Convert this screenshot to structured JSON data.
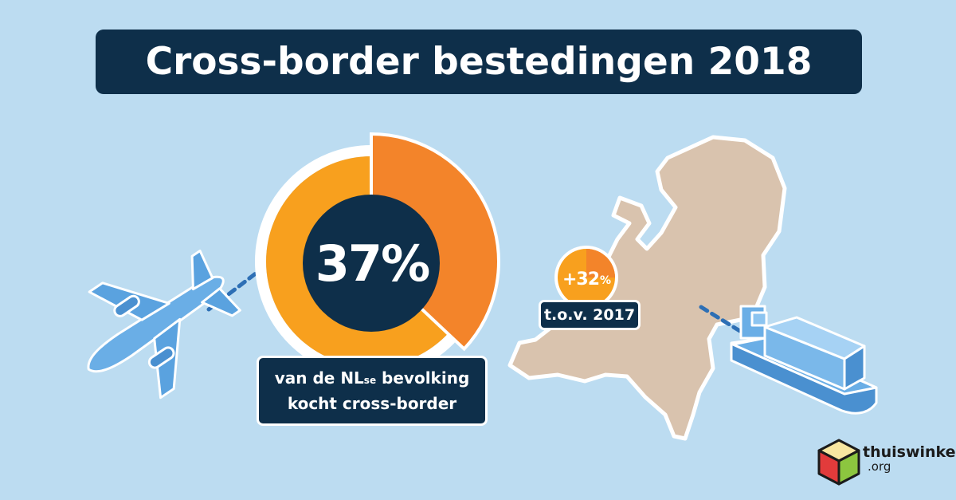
{
  "title": "Cross-border bestedingen 2018",
  "stat": {
    "percent_label": "37%",
    "percent_value": 37,
    "caption_line1_prefix": "van de NL",
    "caption_line1_sub": "se",
    "caption_line1_suffix": " bevolking",
    "caption_line2": "kocht cross-border"
  },
  "growth": {
    "value_label": "+32",
    "percent_sign": "%",
    "compare_label": "t.o.v. 2017"
  },
  "logo": {
    "name": "thuiswinkel",
    "domain": ".org"
  },
  "colors": {
    "background": "#bcdcf1",
    "navy": "#0e2f4a",
    "orange_light": "#f8a01e",
    "orange_dark": "#f3842a",
    "map": "#d9c3ae",
    "vehicle_blue": "#6aaee6"
  },
  "icons": [
    "airplane-icon",
    "container-ship-icon",
    "netherlands-map-icon",
    "thuiswinkel-cube-logo-icon"
  ]
}
